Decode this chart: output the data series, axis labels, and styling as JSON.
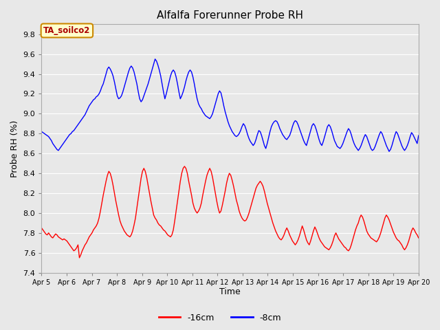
{
  "title": "Alfalfa Forerunner Probe RH",
  "ylabel": "Probe RH (%)",
  "xlabel": "Time",
  "annotation": "TA_soilco2",
  "ylim": [
    7.4,
    9.9
  ],
  "yticks": [
    7.4,
    7.6,
    7.8,
    8.0,
    8.2,
    8.4,
    8.6,
    8.8,
    9.0,
    9.2,
    9.4,
    9.6,
    9.8
  ],
  "legend_labels": [
    "-16cm",
    "-8cm"
  ],
  "legend_colors": [
    "#ff0000",
    "#0000ff"
  ],
  "bg_color": "#e8e8e8",
  "grid_color": "#ffffff",
  "xtick_labels": [
    "Apr 5",
    "Apr 6",
    "Apr 7",
    "Apr 8",
    "Apr 9",
    "Apr 10",
    "Apr 11",
    "Apr 12",
    "Apr 13",
    "Apr 14",
    "Apr 15",
    "Apr 16",
    "Apr 17",
    "Apr 18",
    "Apr 19",
    "Apr 20"
  ],
  "red_data": [
    7.85,
    7.83,
    7.81,
    7.79,
    7.78,
    7.8,
    7.78,
    7.76,
    7.75,
    7.77,
    7.79,
    7.78,
    7.76,
    7.75,
    7.74,
    7.73,
    7.74,
    7.73,
    7.72,
    7.7,
    7.68,
    7.66,
    7.64,
    7.62,
    7.63,
    7.65,
    7.68,
    7.55,
    7.58,
    7.62,
    7.65,
    7.68,
    7.7,
    7.73,
    7.76,
    7.78,
    7.8,
    7.83,
    7.85,
    7.87,
    7.9,
    7.95,
    8.02,
    8.1,
    8.18,
    8.25,
    8.32,
    8.38,
    8.42,
    8.4,
    8.35,
    8.28,
    8.2,
    8.12,
    8.05,
    7.98,
    7.92,
    7.88,
    7.85,
    7.82,
    7.8,
    7.78,
    7.77,
    7.76,
    7.78,
    7.82,
    7.88,
    7.95,
    8.05,
    8.15,
    8.25,
    8.35,
    8.42,
    8.45,
    8.42,
    8.36,
    8.28,
    8.2,
    8.12,
    8.05,
    7.98,
    7.95,
    7.93,
    7.9,
    7.88,
    7.87,
    7.85,
    7.83,
    7.82,
    7.8,
    7.78,
    7.77,
    7.76,
    7.78,
    7.83,
    7.92,
    8.02,
    8.12,
    8.22,
    8.32,
    8.4,
    8.45,
    8.47,
    8.45,
    8.4,
    8.32,
    8.25,
    8.18,
    8.1,
    8.05,
    8.02,
    8.0,
    8.02,
    8.05,
    8.1,
    8.18,
    8.25,
    8.32,
    8.38,
    8.42,
    8.45,
    8.42,
    8.36,
    8.28,
    8.2,
    8.12,
    8.05,
    8.0,
    8.02,
    8.08,
    8.15,
    8.22,
    8.3,
    8.36,
    8.4,
    8.38,
    8.33,
    8.27,
    8.2,
    8.13,
    8.08,
    8.02,
    7.98,
    7.95,
    7.93,
    7.92,
    7.93,
    7.96,
    8.0,
    8.05,
    8.1,
    8.15,
    8.2,
    8.25,
    8.28,
    8.3,
    8.32,
    8.3,
    8.27,
    8.22,
    8.16,
    8.1,
    8.05,
    8.0,
    7.95,
    7.9,
    7.86,
    7.82,
    7.79,
    7.76,
    7.74,
    7.73,
    7.75,
    7.78,
    7.82,
    7.85,
    7.82,
    7.78,
    7.75,
    7.72,
    7.7,
    7.68,
    7.7,
    7.73,
    7.77,
    7.82,
    7.87,
    7.83,
    7.78,
    7.73,
    7.7,
    7.68,
    7.72,
    7.77,
    7.82,
    7.86,
    7.83,
    7.79,
    7.75,
    7.72,
    7.7,
    7.68,
    7.66,
    7.65,
    7.64,
    7.63,
    7.65,
    7.68,
    7.72,
    7.77,
    7.8,
    7.77,
    7.74,
    7.72,
    7.7,
    7.68,
    7.66,
    7.65,
    7.63,
    7.62,
    7.64,
    7.68,
    7.73,
    7.78,
    7.83,
    7.87,
    7.9,
    7.95,
    7.98,
    7.96,
    7.92,
    7.87,
    7.82,
    7.79,
    7.77,
    7.75,
    7.74,
    7.73,
    7.72,
    7.71,
    7.73,
    7.76,
    7.8,
    7.85,
    7.9,
    7.95,
    7.98,
    7.96,
    7.93,
    7.89,
    7.85,
    7.81,
    7.78,
    7.75,
    7.73,
    7.72,
    7.7,
    7.68,
    7.65,
    7.63,
    7.65,
    7.68,
    7.72,
    7.77,
    7.82,
    7.85,
    7.83,
    7.8,
    7.78,
    7.75
  ],
  "blue_data": [
    8.82,
    8.81,
    8.8,
    8.79,
    8.78,
    8.77,
    8.75,
    8.73,
    8.7,
    8.68,
    8.66,
    8.64,
    8.63,
    8.65,
    8.67,
    8.69,
    8.71,
    8.73,
    8.75,
    8.77,
    8.79,
    8.8,
    8.82,
    8.83,
    8.85,
    8.87,
    8.89,
    8.91,
    8.93,
    8.95,
    8.97,
    8.99,
    9.02,
    9.05,
    9.08,
    9.1,
    9.12,
    9.14,
    9.15,
    9.17,
    9.18,
    9.2,
    9.23,
    9.27,
    9.3,
    9.35,
    9.4,
    9.45,
    9.47,
    9.45,
    9.42,
    9.38,
    9.32,
    9.25,
    9.18,
    9.15,
    9.16,
    9.18,
    9.22,
    9.27,
    9.32,
    9.37,
    9.42,
    9.46,
    9.48,
    9.46,
    9.42,
    9.36,
    9.3,
    9.22,
    9.15,
    9.12,
    9.14,
    9.18,
    9.22,
    9.26,
    9.3,
    9.35,
    9.4,
    9.45,
    9.5,
    9.55,
    9.53,
    9.49,
    9.44,
    9.38,
    9.3,
    9.22,
    9.15,
    9.2,
    9.26,
    9.32,
    9.38,
    9.42,
    9.44,
    9.42,
    9.37,
    9.3,
    9.22,
    9.15,
    9.18,
    9.22,
    9.27,
    9.33,
    9.38,
    9.42,
    9.44,
    9.42,
    9.37,
    9.3,
    9.22,
    9.15,
    9.1,
    9.07,
    9.05,
    9.02,
    9.0,
    8.98,
    8.97,
    8.96,
    8.95,
    8.97,
    9.0,
    9.05,
    9.1,
    9.15,
    9.2,
    9.23,
    9.21,
    9.15,
    9.08,
    9.02,
    8.97,
    8.92,
    8.88,
    8.85,
    8.82,
    8.8,
    8.78,
    8.77,
    8.78,
    8.8,
    8.83,
    8.87,
    8.9,
    8.88,
    8.84,
    8.79,
    8.75,
    8.72,
    8.7,
    8.68,
    8.7,
    8.74,
    8.79,
    8.83,
    8.82,
    8.78,
    8.73,
    8.68,
    8.65,
    8.7,
    8.76,
    8.82,
    8.87,
    8.9,
    8.92,
    8.93,
    8.92,
    8.89,
    8.85,
    8.82,
    8.79,
    8.77,
    8.75,
    8.74,
    8.76,
    8.78,
    8.82,
    8.87,
    8.91,
    8.93,
    8.92,
    8.89,
    8.85,
    8.81,
    8.77,
    8.73,
    8.7,
    8.68,
    8.73,
    8.78,
    8.83,
    8.88,
    8.9,
    8.88,
    8.84,
    8.79,
    8.74,
    8.7,
    8.68,
    8.72,
    8.77,
    8.82,
    8.87,
    8.89,
    8.87,
    8.83,
    8.78,
    8.73,
    8.7,
    8.67,
    8.66,
    8.65,
    8.67,
    8.7,
    8.74,
    8.78,
    8.82,
    8.85,
    8.83,
    8.79,
    8.74,
    8.7,
    8.67,
    8.65,
    8.63,
    8.65,
    8.68,
    8.72,
    8.76,
    8.79,
    8.77,
    8.73,
    8.69,
    8.65,
    8.63,
    8.64,
    8.67,
    8.71,
    8.75,
    8.79,
    8.82,
    8.8,
    8.76,
    8.72,
    8.68,
    8.65,
    8.62,
    8.64,
    8.68,
    8.73,
    8.78,
    8.82,
    8.8,
    8.76,
    8.72,
    8.68,
    8.65,
    8.63,
    8.65,
    8.68,
    8.72,
    8.77,
    8.81,
    8.79,
    8.76,
    8.73,
    8.7,
    8.78
  ]
}
